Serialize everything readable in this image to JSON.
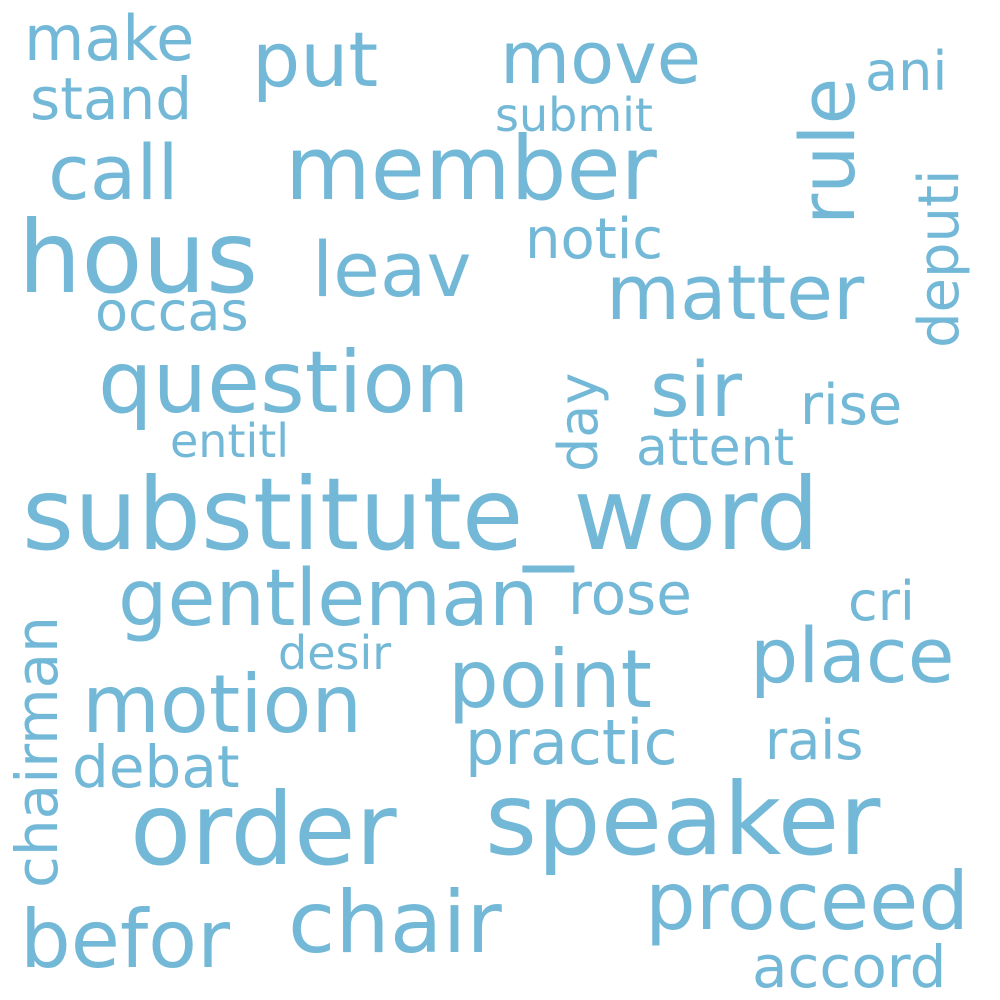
{
  "color": "#73b9d7",
  "words": [
    {
      "text": "substitute_word"
    },
    {
      "text": "order"
    },
    {
      "text": "speaker"
    },
    {
      "text": "hous"
    },
    {
      "text": "member"
    },
    {
      "text": "question"
    },
    {
      "text": "chair"
    },
    {
      "text": "gentleman"
    },
    {
      "text": "motion"
    },
    {
      "text": "point"
    },
    {
      "text": "place"
    },
    {
      "text": "proceed"
    },
    {
      "text": "matter"
    },
    {
      "text": "befor"
    },
    {
      "text": "rule"
    },
    {
      "text": "leav"
    },
    {
      "text": "call"
    },
    {
      "text": "put"
    },
    {
      "text": "move"
    },
    {
      "text": "sir"
    },
    {
      "text": "make"
    },
    {
      "text": "chairman"
    },
    {
      "text": "practic"
    },
    {
      "text": "accord"
    },
    {
      "text": "deputi"
    },
    {
      "text": "stand"
    },
    {
      "text": "rose"
    },
    {
      "text": "rise"
    },
    {
      "text": "notic"
    },
    {
      "text": "debat"
    },
    {
      "text": "rais"
    },
    {
      "text": "occas"
    },
    {
      "text": "attent"
    },
    {
      "text": "cri"
    },
    {
      "text": "ani"
    },
    {
      "text": "day"
    },
    {
      "text": "entitl"
    },
    {
      "text": "submit"
    },
    {
      "text": "desir"
    }
  ]
}
